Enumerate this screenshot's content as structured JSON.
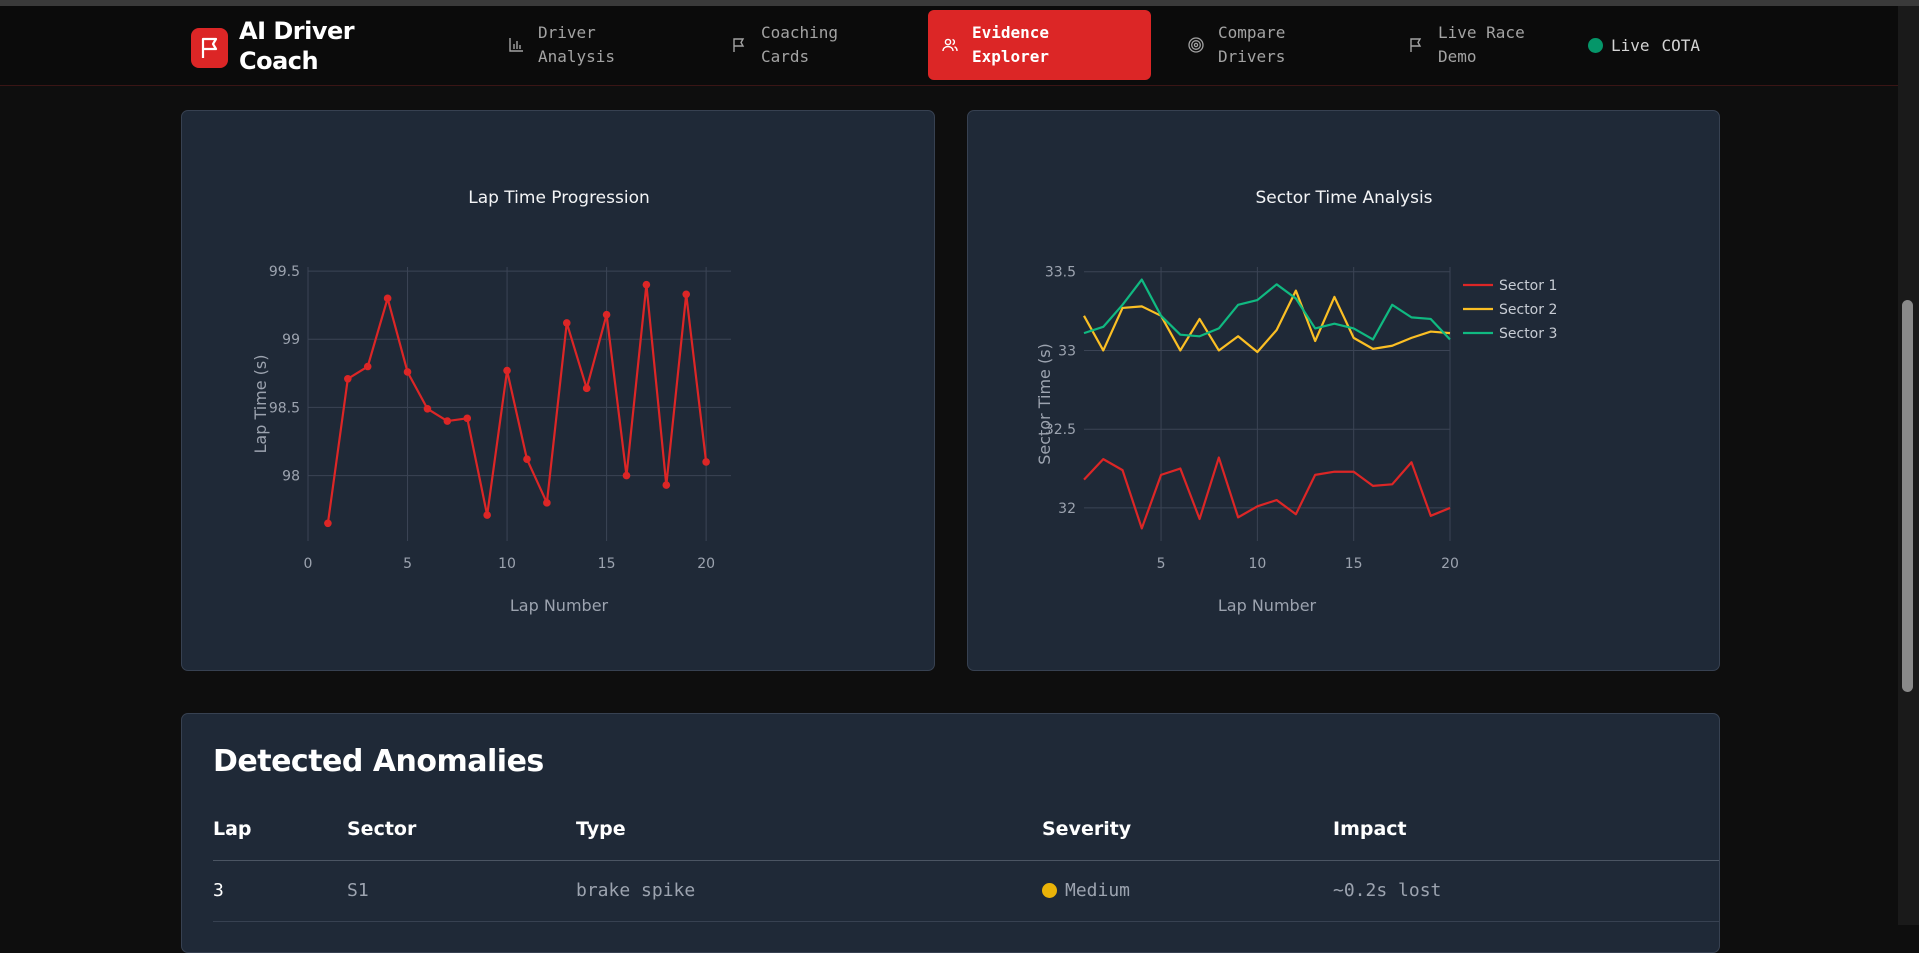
{
  "app": {
    "title": "AI Driver Coach"
  },
  "nav": [
    {
      "label_1": "Driver",
      "label_2": "Analysis",
      "icon": "bar-chart-icon"
    },
    {
      "label_1": "Coaching",
      "label_2": "Cards",
      "icon": "flag-icon"
    },
    {
      "label_1": "Evidence",
      "label_2": "Explorer",
      "icon": "users-icon",
      "active": true
    },
    {
      "label_1": "Compare",
      "label_2": "Drivers",
      "icon": "target-icon"
    },
    {
      "label_1": "Live Race",
      "label_2": "Demo",
      "icon": "flag-icon"
    }
  ],
  "status": {
    "live": "Live",
    "track": "COTA",
    "color": "#059669"
  },
  "chart_data": [
    {
      "type": "line",
      "title": "Lap Time Progression",
      "xlabel": "Lap Number",
      "ylabel": "Lap Time (s)",
      "xlim": [
        0,
        21.25
      ],
      "ylim": [
        97.52,
        99.53
      ],
      "xticks": [
        0,
        5,
        10,
        15,
        20
      ],
      "yticks": [
        98,
        98.5,
        99,
        99.5
      ],
      "ytick_labels": [
        "98",
        "98.5",
        "99",
        "99.5"
      ],
      "grid": true,
      "markers": true,
      "series": [
        {
          "name": "Lap Time",
          "color": "#dc2626",
          "x": [
            1,
            2,
            3,
            4,
            5,
            6,
            7,
            8,
            9,
            10,
            11,
            12,
            13,
            14,
            15,
            16,
            17,
            18,
            19,
            20
          ],
          "y": [
            97.65,
            98.71,
            98.8,
            99.3,
            98.76,
            98.49,
            98.4,
            98.42,
            97.71,
            98.77,
            98.12,
            97.8,
            99.12,
            98.64,
            99.18,
            98.0,
            99.4,
            97.93,
            99.33,
            98.1
          ]
        }
      ]
    },
    {
      "type": "line",
      "title": "Sector Time Analysis",
      "xlabel": "Lap Number",
      "ylabel": "Sector Time (s)",
      "xlim": [
        1,
        20
      ],
      "ylim": [
        31.79,
        33.53
      ],
      "xticks": [
        5,
        10,
        15,
        20
      ],
      "yticks": [
        32,
        32.5,
        33,
        33.5
      ],
      "ytick_labels": [
        "32",
        "32.5",
        "33",
        "33.5"
      ],
      "grid": true,
      "legend": "top-right",
      "x": [
        1,
        2,
        3,
        4,
        5,
        6,
        7,
        8,
        9,
        10,
        11,
        12,
        13,
        14,
        15,
        16,
        17,
        18,
        19,
        20
      ],
      "series": [
        {
          "name": "Sector 1",
          "color": "#dc2626",
          "y": [
            32.18,
            32.31,
            32.24,
            31.87,
            32.21,
            32.25,
            31.93,
            32.32,
            31.94,
            32.01,
            32.05,
            31.96,
            32.21,
            32.23,
            32.23,
            32.14,
            32.15,
            32.29,
            31.95,
            32.0
          ]
        },
        {
          "name": "Sector 2",
          "color": "#fbbf24",
          "y": [
            33.22,
            33.0,
            33.27,
            33.28,
            33.22,
            33.0,
            33.2,
            33.0,
            33.09,
            32.99,
            33.13,
            33.38,
            33.06,
            33.34,
            33.08,
            33.01,
            33.03,
            33.08,
            33.12,
            33.11
          ]
        },
        {
          "name": "Sector 3",
          "color": "#10b981",
          "y": [
            33.11,
            33.15,
            33.29,
            33.45,
            33.22,
            33.1,
            33.09,
            33.14,
            33.29,
            33.32,
            33.42,
            33.33,
            33.14,
            33.17,
            33.14,
            33.07,
            33.29,
            33.21,
            33.2,
            33.07
          ]
        }
      ]
    }
  ],
  "anomalies": {
    "title": "Detected Anomalies",
    "columns": [
      "Lap",
      "Sector",
      "Type",
      "Severity",
      "Impact"
    ],
    "rows": [
      {
        "lap": "3",
        "sector": "S1",
        "type": "brake spike",
        "severity": "Medium",
        "severity_color": "#eab308",
        "impact": "~0.2s lost"
      }
    ]
  }
}
